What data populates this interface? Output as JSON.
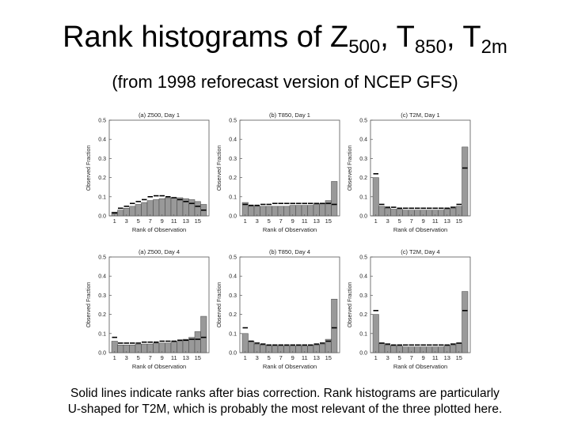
{
  "title": {
    "main": "Rank histograms of Z",
    "z_sub": "500",
    "sep1": ", T",
    "t_sub": "850",
    "sep2": ", T",
    "t2_sub": "2m"
  },
  "subtitle": "(from 1998 reforecast version of NCEP GFS)",
  "caption": {
    "line1": "Solid lines indicate ranks after bias correction. Rank histograms are particularly",
    "line2": "U-shaped for T2M, which is probably the most relevant of the three plotted here."
  },
  "colors": {
    "bar_fill": "#999999",
    "bar_edge": "#444444",
    "corrected_line": "#000000"
  },
  "chart_data": [
    {
      "type": "bar",
      "panel_title": "(a) Z500, Day 1",
      "xlabel": "Rank of Observation",
      "ylabel": "Observed Fraction",
      "ylim": [
        0,
        0.5
      ],
      "yticks": [
        "0.0",
        "0.1",
        "0.2",
        "0.3",
        "0.4",
        "0.5"
      ],
      "xtick_labels": [
        "1",
        "3",
        "5",
        "7",
        "9",
        "11",
        "13",
        "15"
      ],
      "categories": [
        1,
        2,
        3,
        4,
        5,
        6,
        7,
        8,
        9,
        10,
        11,
        12,
        13,
        14,
        15,
        16
      ],
      "series": [
        {
          "values": [
            0.02,
            0.03,
            0.04,
            0.05,
            0.06,
            0.07,
            0.08,
            0.085,
            0.09,
            0.095,
            0.095,
            0.095,
            0.09,
            0.085,
            0.075,
            0.06
          ]
        },
        {
          "values": [
            0.015,
            0.04,
            0.05,
            0.065,
            0.075,
            0.085,
            0.1,
            0.105,
            0.105,
            0.1,
            0.095,
            0.085,
            0.075,
            0.065,
            0.05,
            0.03
          ]
        }
      ]
    },
    {
      "type": "bar",
      "panel_title": "(b) T850, Day 1",
      "xlabel": "Rank of Observation",
      "ylabel": "Observed Fraction",
      "ylim": [
        0,
        0.5
      ],
      "yticks": [
        "0.0",
        "0.1",
        "0.2",
        "0.3",
        "0.4",
        "0.5"
      ],
      "xtick_labels": [
        "1",
        "3",
        "5",
        "7",
        "9",
        "11",
        "13",
        "15"
      ],
      "categories": [
        1,
        2,
        3,
        4,
        5,
        6,
        7,
        8,
        9,
        10,
        11,
        12,
        13,
        14,
        15,
        16
      ],
      "series": [
        {
          "values": [
            0.07,
            0.05,
            0.05,
            0.05,
            0.05,
            0.05,
            0.05,
            0.05,
            0.055,
            0.055,
            0.055,
            0.055,
            0.06,
            0.065,
            0.08,
            0.18
          ]
        },
        {
          "values": [
            0.06,
            0.055,
            0.055,
            0.06,
            0.06,
            0.065,
            0.065,
            0.065,
            0.065,
            0.065,
            0.065,
            0.065,
            0.065,
            0.065,
            0.065,
            0.06
          ]
        }
      ]
    },
    {
      "type": "bar",
      "panel_title": "(c) T2M, Day 1",
      "xlabel": "Rank of Observation",
      "ylabel": "Observed Fraction",
      "ylim": [
        0,
        0.5
      ],
      "yticks": [
        "0.0",
        "0.1",
        "0.2",
        "0.3",
        "0.4",
        "0.5"
      ],
      "xtick_labels": [
        "1",
        "3",
        "5",
        "7",
        "9",
        "11",
        "13",
        "15"
      ],
      "categories": [
        1,
        2,
        3,
        4,
        5,
        6,
        7,
        8,
        9,
        10,
        11,
        12,
        13,
        14,
        15,
        16
      ],
      "series": [
        {
          "values": [
            0.2,
            0.05,
            0.04,
            0.035,
            0.035,
            0.03,
            0.03,
            0.03,
            0.03,
            0.03,
            0.03,
            0.03,
            0.035,
            0.04,
            0.05,
            0.36
          ]
        },
        {
          "values": [
            0.22,
            0.06,
            0.045,
            0.045,
            0.04,
            0.04,
            0.04,
            0.04,
            0.04,
            0.04,
            0.04,
            0.04,
            0.04,
            0.045,
            0.06,
            0.25
          ]
        }
      ]
    },
    {
      "type": "bar",
      "panel_title": "(a) Z500, Day 4",
      "xlabel": "Rank of Observation",
      "ylabel": "Observed Fraction",
      "ylim": [
        0,
        0.5
      ],
      "yticks": [
        "0.0",
        "0.1",
        "0.2",
        "0.3",
        "0.4",
        "0.5"
      ],
      "xtick_labels": [
        "1",
        "3",
        "5",
        "7",
        "9",
        "11",
        "13",
        "15"
      ],
      "categories": [
        1,
        2,
        3,
        4,
        5,
        6,
        7,
        8,
        9,
        10,
        11,
        12,
        13,
        14,
        15,
        16
      ],
      "series": [
        {
          "values": [
            0.06,
            0.04,
            0.04,
            0.04,
            0.045,
            0.045,
            0.045,
            0.05,
            0.05,
            0.05,
            0.055,
            0.06,
            0.07,
            0.08,
            0.11,
            0.19
          ]
        },
        {
          "values": [
            0.08,
            0.05,
            0.05,
            0.05,
            0.05,
            0.055,
            0.055,
            0.055,
            0.06,
            0.06,
            0.06,
            0.065,
            0.065,
            0.07,
            0.07,
            0.08
          ]
        }
      ]
    },
    {
      "type": "bar",
      "panel_title": "(b) T850, Day 4",
      "xlabel": "Rank of Observation",
      "ylabel": "Observed Fraction",
      "ylim": [
        0,
        0.5
      ],
      "yticks": [
        "0.0",
        "0.1",
        "0.2",
        "0.3",
        "0.4",
        "0.5"
      ],
      "xtick_labels": [
        "1",
        "3",
        "5",
        "7",
        "9",
        "11",
        "13",
        "15"
      ],
      "categories": [
        1,
        2,
        3,
        4,
        5,
        6,
        7,
        8,
        9,
        10,
        11,
        12,
        13,
        14,
        15,
        16
      ],
      "series": [
        {
          "values": [
            0.1,
            0.06,
            0.045,
            0.04,
            0.035,
            0.035,
            0.035,
            0.035,
            0.035,
            0.035,
            0.035,
            0.035,
            0.04,
            0.045,
            0.07,
            0.28
          ]
        },
        {
          "values": [
            0.13,
            0.06,
            0.05,
            0.045,
            0.04,
            0.04,
            0.04,
            0.04,
            0.04,
            0.04,
            0.04,
            0.04,
            0.045,
            0.05,
            0.06,
            0.13
          ]
        }
      ]
    },
    {
      "type": "bar",
      "panel_title": "(c) T2M, Day 4",
      "xlabel": "Rank of Observation",
      "ylabel": "Observed Fraction",
      "ylim": [
        0,
        0.5
      ],
      "yticks": [
        "0.0",
        "0.1",
        "0.2",
        "0.3",
        "0.4",
        "0.5"
      ],
      "xtick_labels": [
        "1",
        "3",
        "5",
        "7",
        "9",
        "11",
        "13",
        "15"
      ],
      "categories": [
        1,
        2,
        3,
        4,
        5,
        6,
        7,
        8,
        9,
        10,
        11,
        12,
        13,
        14,
        15,
        16
      ],
      "series": [
        {
          "values": [
            0.2,
            0.05,
            0.04,
            0.035,
            0.035,
            0.03,
            0.03,
            0.03,
            0.03,
            0.03,
            0.03,
            0.03,
            0.035,
            0.04,
            0.05,
            0.32
          ]
        },
        {
          "values": [
            0.22,
            0.05,
            0.045,
            0.04,
            0.04,
            0.04,
            0.04,
            0.04,
            0.04,
            0.04,
            0.04,
            0.04,
            0.04,
            0.045,
            0.05,
            0.22
          ]
        }
      ]
    }
  ]
}
